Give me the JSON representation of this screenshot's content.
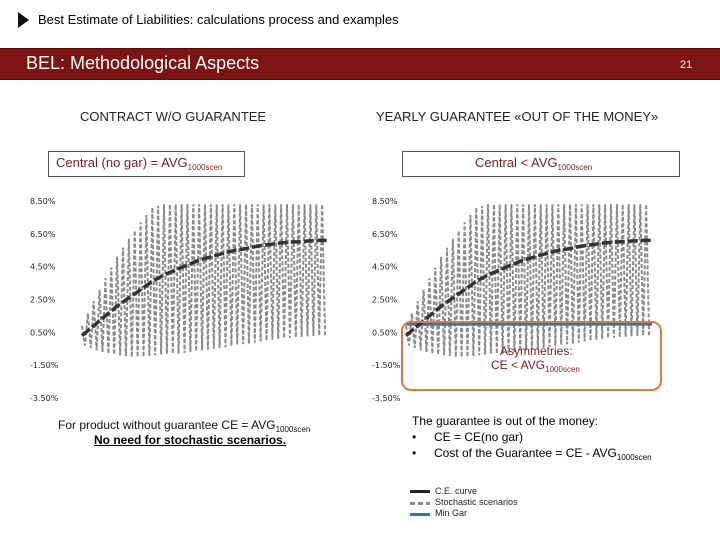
{
  "header": {
    "top_title": "Best Estimate of Liabilities: calculations process and examples",
    "banner_title": "BEL: Methodological Aspects",
    "page_number": "21"
  },
  "left_panel": {
    "heading": "CONTRACT W/O GUARANTEE",
    "box_text": "Central (no gar) = AVG",
    "box_sub": "1000scen",
    "note_line1": "For product without guarantee CE = AVG",
    "note_sub": "1000scen",
    "note_line2": "No need for stochastic scenarios."
  },
  "right_panel": {
    "heading": "YEARLY GUARANTEE «OUT OF THE MONEY»",
    "box_text": "Central < AVG",
    "box_sub": "1000scen",
    "asym_line1": "Asymmetries:",
    "asym_line2": "CE < AVG",
    "asym_sub": "1000scen",
    "guarantee_text": "The guarantee is out of the money:",
    "bullet_char": "•",
    "bullet1": "CE = CE(no gar)",
    "bullet2": "Cost of the Guarantee = CE - AVG",
    "bullet2_sub": "1000scen"
  },
  "legend": {
    "ce_curve": "C.E. curve",
    "stochastic": "Stochastic scenarios",
    "min_gar": "Min Gar"
  },
  "colors": {
    "banner": "#7b1413",
    "ce_curve": "#333333",
    "stochastic": "#8a8a8a",
    "min_gar": "#2e75b6",
    "highlight": "#e07840"
  },
  "chart_data": [
    {
      "type": "line",
      "title": "",
      "y_tick_labels": [
        "8.50%",
        "6.50%",
        "4.50%",
        "2.50%",
        "0.50%",
        "-1.50%",
        "-3.50%"
      ],
      "ylim": [
        -3.5,
        8.5
      ],
      "series": [
        {
          "values_ce": [
            0.3,
            0.9,
            1.5,
            2.1,
            2.6,
            3.1,
            3.6,
            4.0,
            4.3,
            4.6,
            4.9,
            5.1,
            5.3,
            5.5,
            5.6,
            5.75,
            5.85,
            5.95,
            6.0,
            6.05,
            6.1,
            6.1
          ]
        },
        {
          "stochastic_amplitude": [
            0.6,
            1.5,
            2.3,
            3.0,
            3.6,
            4.1,
            4.5,
            4.8,
            5.1,
            5.3,
            5.5,
            5.6,
            5.7,
            5.75,
            5.8,
            5.8,
            5.8,
            5.8,
            5.8,
            5.8,
            5.8,
            5.8
          ]
        }
      ]
    },
    {
      "type": "line",
      "title": "",
      "y_tick_labels": [
        "8.50%",
        "6.50%",
        "4.50%",
        "2.50%",
        "0.50%",
        "-1.50%",
        "-3.50%"
      ],
      "ylim": [
        -3.5,
        8.5
      ],
      "series": [
        {
          "values_ce": [
            0.3,
            0.9,
            1.5,
            2.1,
            2.6,
            3.1,
            3.6,
            4.0,
            4.3,
            4.6,
            4.9,
            5.1,
            5.3,
            5.5,
            5.6,
            5.75,
            5.85,
            5.95,
            6.0,
            6.05,
            6.1,
            6.1
          ]
        },
        {
          "stochastic_amplitude": [
            0.6,
            1.5,
            2.3,
            3.0,
            3.6,
            4.1,
            4.5,
            4.8,
            5.1,
            5.3,
            5.5,
            5.6,
            5.7,
            5.75,
            5.8,
            5.8,
            5.8,
            5.8,
            5.8,
            5.8,
            5.8,
            5.8
          ]
        },
        {
          "min_gar": 1.0
        }
      ]
    }
  ]
}
